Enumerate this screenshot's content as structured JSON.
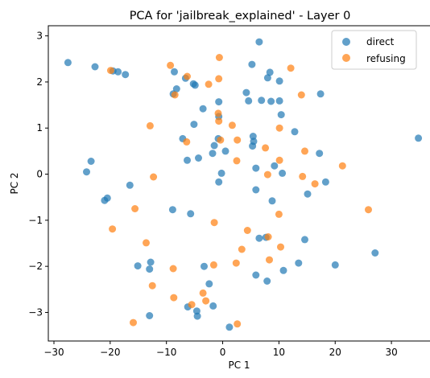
{
  "chart_data": {
    "type": "scatter",
    "title": "PCA for 'jailbreak_explained' - Layer 0",
    "xlabel": "PC 1",
    "ylabel": "PC 2",
    "xlim": [
      -31,
      37
    ],
    "ylim": [
      -3.62,
      3.22
    ],
    "xticks": [
      -30,
      -20,
      -10,
      0,
      10,
      20,
      30
    ],
    "yticks": [
      -3,
      -2,
      -1,
      0,
      1,
      2,
      3
    ],
    "grid": false,
    "legend_position": "top-right",
    "series": [
      {
        "name": "direct",
        "color": "#1f77b4",
        "points": [
          [
            -27.5,
            2.42
          ],
          [
            -22.7,
            2.33
          ],
          [
            -19.5,
            2.24
          ],
          [
            -18.6,
            2.22
          ],
          [
            -17.3,
            2.16
          ],
          [
            -8.6,
            2.22
          ],
          [
            -6.6,
            2.08
          ],
          [
            -5.2,
            1.96
          ],
          [
            -4.9,
            1.93
          ],
          [
            -8.2,
            1.85
          ],
          [
            -8.8,
            1.74
          ],
          [
            -0.7,
            1.57
          ],
          [
            -3.5,
            1.42
          ],
          [
            -0.7,
            1.25
          ],
          [
            -5.1,
            1.08
          ],
          [
            -7.1,
            0.77
          ],
          [
            -1.5,
            0.62
          ],
          [
            -6.3,
            0.3
          ],
          [
            -4.3,
            0.35
          ],
          [
            -1.8,
            0.45
          ],
          [
            0.5,
            0.5
          ],
          [
            -0.8,
            0.77
          ],
          [
            5.2,
            2.38
          ],
          [
            6.5,
            2.87
          ],
          [
            8.4,
            2.21
          ],
          [
            8.0,
            2.09
          ],
          [
            10.1,
            2.02
          ],
          [
            4.2,
            1.77
          ],
          [
            4.6,
            1.59
          ],
          [
            6.9,
            1.6
          ],
          [
            8.6,
            1.58
          ],
          [
            10.1,
            1.59
          ],
          [
            10.4,
            1.29
          ],
          [
            12.8,
            0.92
          ],
          [
            17.4,
            1.74
          ],
          [
            5.3,
            0.61
          ],
          [
            5.5,
            0.71
          ],
          [
            5.4,
            0.82
          ],
          [
            17.2,
            0.45
          ],
          [
            34.8,
            0.78
          ],
          [
            -23.4,
            0.28
          ],
          [
            -24.2,
            0.05
          ],
          [
            -20.5,
            -0.52
          ],
          [
            -21.0,
            -0.57
          ],
          [
            -16.5,
            -0.24
          ],
          [
            -0.2,
            0.02
          ],
          [
            -0.7,
            -0.17
          ],
          [
            5.9,
            0.13
          ],
          [
            5.9,
            -0.34
          ],
          [
            9.2,
            0.18
          ],
          [
            10.6,
            0.02
          ],
          [
            8.8,
            -0.58
          ],
          [
            15.1,
            -0.43
          ],
          [
            18.3,
            -0.17
          ],
          [
            -8.9,
            -0.77
          ],
          [
            -5.7,
            -0.86
          ],
          [
            6.5,
            -1.39
          ],
          [
            7.7,
            -1.37
          ],
          [
            14.6,
            -1.42
          ],
          [
            27.1,
            -1.71
          ],
          [
            20.0,
            -1.97
          ],
          [
            13.5,
            -1.93
          ],
          [
            10.8,
            -2.09
          ],
          [
            -15.1,
            -1.99
          ],
          [
            -12.8,
            -1.91
          ],
          [
            -13.0,
            -2.06
          ],
          [
            -3.3,
            -2.0
          ],
          [
            -2.4,
            -2.38
          ],
          [
            5.9,
            -2.19
          ],
          [
            7.9,
            -2.32
          ],
          [
            -6.2,
            -2.88
          ],
          [
            -4.6,
            -2.97
          ],
          [
            -4.5,
            -3.08
          ],
          [
            -1.7,
            -2.86
          ],
          [
            -13.0,
            -3.07
          ],
          [
            1.2,
            -3.32
          ]
        ]
      },
      {
        "name": "refusing",
        "color": "#ff7f0e",
        "points": [
          [
            -9.3,
            2.36
          ],
          [
            -6.3,
            2.12
          ],
          [
            -0.6,
            2.53
          ],
          [
            -0.7,
            2.07
          ],
          [
            -2.5,
            1.95
          ],
          [
            -19.9,
            2.25
          ],
          [
            -8.5,
            1.72
          ],
          [
            12.1,
            2.3
          ],
          [
            14.0,
            1.72
          ],
          [
            -0.8,
            1.32
          ],
          [
            -0.7,
            1.15
          ],
          [
            1.7,
            1.06
          ],
          [
            -12.9,
            1.05
          ],
          [
            10.1,
            1.0
          ],
          [
            -0.4,
            0.74
          ],
          [
            2.6,
            0.74
          ],
          [
            -6.4,
            0.7
          ],
          [
            7.6,
            0.57
          ],
          [
            14.6,
            0.5
          ],
          [
            2.5,
            0.29
          ],
          [
            10.1,
            0.3
          ],
          [
            21.3,
            0.18
          ],
          [
            -12.3,
            -0.06
          ],
          [
            8.0,
            -0.01
          ],
          [
            14.2,
            -0.05
          ],
          [
            16.4,
            -0.21
          ],
          [
            -15.6,
            -0.75
          ],
          [
            -1.5,
            -1.05
          ],
          [
            10.0,
            -0.87
          ],
          [
            25.9,
            -0.77
          ],
          [
            -19.6,
            -1.19
          ],
          [
            4.4,
            -1.22
          ],
          [
            8.1,
            -1.36
          ],
          [
            -13.6,
            -1.49
          ],
          [
            3.4,
            -1.63
          ],
          [
            10.3,
            -1.58
          ],
          [
            -8.8,
            -2.05
          ],
          [
            -1.6,
            -1.97
          ],
          [
            2.4,
            -1.93
          ],
          [
            8.3,
            -1.86
          ],
          [
            -12.5,
            -2.42
          ],
          [
            -8.7,
            -2.68
          ],
          [
            -3.5,
            -2.58
          ],
          [
            -5.5,
            -2.83
          ],
          [
            -3.0,
            -2.75
          ],
          [
            -15.9,
            -3.22
          ],
          [
            2.6,
            -3.25
          ]
        ]
      }
    ]
  }
}
